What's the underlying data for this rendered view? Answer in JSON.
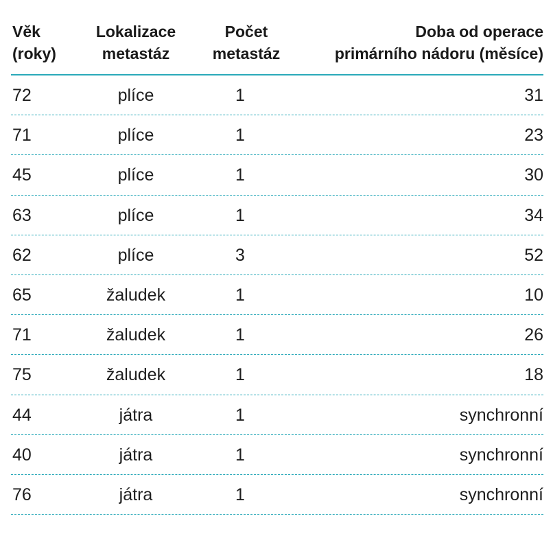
{
  "table": {
    "headers": {
      "age": [
        "Věk",
        "(roky)"
      ],
      "location": [
        "Lokalizace",
        "metastáz"
      ],
      "count": [
        "Počet",
        "metastáz"
      ],
      "time": [
        "Doba od operace",
        "primárního nádoru (měsíce)"
      ]
    },
    "rows": [
      {
        "age": "72",
        "location": "plíce",
        "count": "1",
        "time": "31"
      },
      {
        "age": "71",
        "location": "plíce",
        "count": "1",
        "time": "23"
      },
      {
        "age": "45",
        "location": "plíce",
        "count": "1",
        "time": "30"
      },
      {
        "age": "63",
        "location": "plíce",
        "count": "1",
        "time": "34"
      },
      {
        "age": "62",
        "location": "plíce",
        "count": "3",
        "time": "52"
      },
      {
        "age": "65",
        "location": "žaludek",
        "count": "1",
        "time": "10"
      },
      {
        "age": "71",
        "location": "žaludek",
        "count": "1",
        "time": "26"
      },
      {
        "age": "75",
        "location": "žaludek",
        "count": "1",
        "time": "18"
      },
      {
        "age": "44",
        "location": "játra",
        "count": "1",
        "time": "synchronní"
      },
      {
        "age": "40",
        "location": "játra",
        "count": "1",
        "time": "synchronní"
      },
      {
        "age": "76",
        "location": "játra",
        "count": "1",
        "time": "synchronní"
      }
    ]
  },
  "colors": {
    "rule": "#2aa9b9",
    "text": "#1e1e1e"
  }
}
